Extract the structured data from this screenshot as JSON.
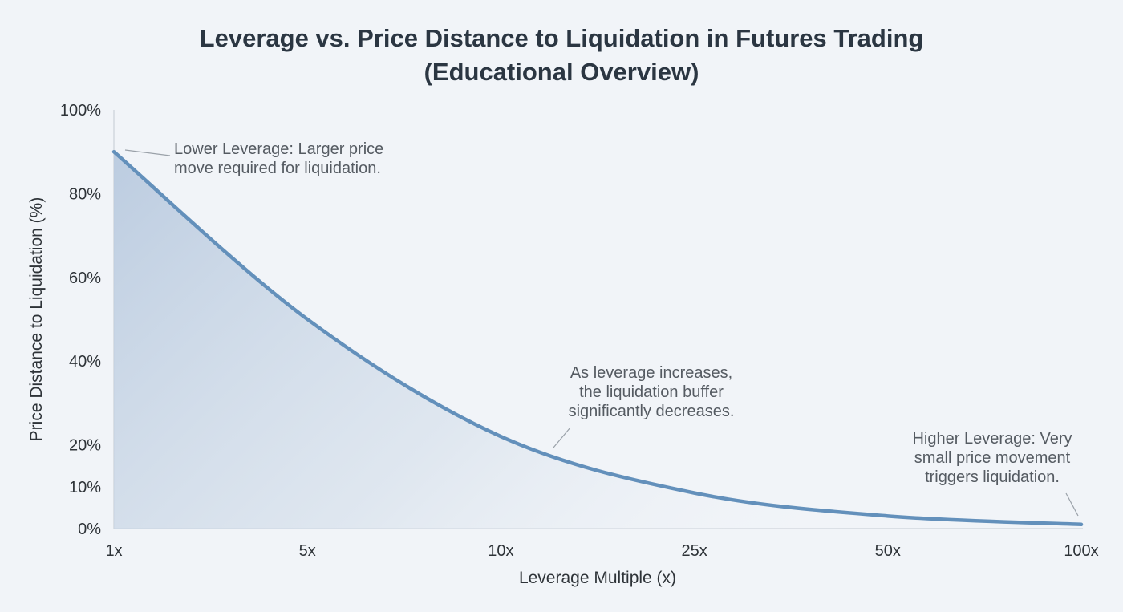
{
  "chart_data": {
    "type": "area",
    "title": "Leverage vs. Price Distance to Liquidation in Futures Trading",
    "subtitle": "(Educational Overview)",
    "xlabel": "Leverage Multiple (x)",
    "ylabel": "Price Distance to Liquidation (%)",
    "categories": [
      "1x",
      "5x",
      "10x",
      "25x",
      "50x",
      "100x"
    ],
    "values": [
      90,
      50,
      22,
      8.5,
      3,
      1
    ],
    "ylim": [
      0,
      100
    ],
    "yticks": [
      "0%",
      "10%",
      "20%",
      "40%",
      "60%",
      "80%",
      "100%"
    ],
    "ytick_values": [
      0,
      10,
      20,
      40,
      60,
      80,
      100
    ],
    "grid": false,
    "line_color": "#6390bb",
    "fill_color": "#b9cadf",
    "annotations": [
      {
        "lines": [
          "Lower Leverage: Larger price",
          "move required for liquidation."
        ],
        "target": "1x"
      },
      {
        "lines": [
          "As leverage increases,",
          "the liquidation buffer",
          "significantly decreases."
        ],
        "target": "10x"
      },
      {
        "lines": [
          "Higher Leverage: Very",
          "small price movement",
          "triggers liquidation."
        ],
        "target": "100x"
      }
    ]
  }
}
